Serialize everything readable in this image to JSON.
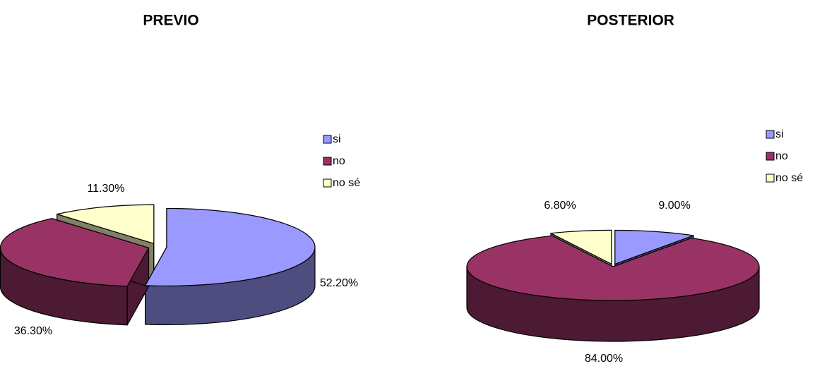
{
  "chart_data": [
    {
      "type": "pie",
      "title": "PREVIO",
      "categories": [
        "si",
        "no",
        "no sé"
      ],
      "values": [
        52.2,
        36.3,
        11.3
      ],
      "value_labels": [
        "52.20%",
        "36.30%",
        "11.30%"
      ],
      "colors": [
        "#9999ff",
        "#993366",
        "#ffffcc"
      ]
    },
    {
      "type": "pie",
      "title": "POSTERIOR",
      "categories": [
        "si",
        "no",
        "no sé"
      ],
      "values": [
        9.0,
        84.0,
        6.8
      ],
      "value_labels": [
        "9.00%",
        "84.00%",
        "6.80%"
      ],
      "colors": [
        "#9999ff",
        "#993366",
        "#ffffcc"
      ]
    }
  ]
}
